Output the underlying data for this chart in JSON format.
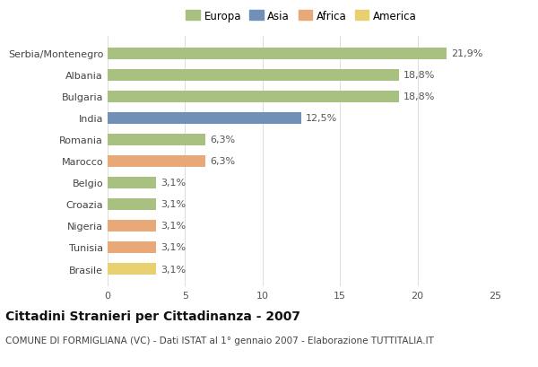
{
  "categories": [
    "Serbia/Montenegro",
    "Albania",
    "Bulgaria",
    "India",
    "Romania",
    "Marocco",
    "Belgio",
    "Croazia",
    "Nigeria",
    "Tunisia",
    "Brasile"
  ],
  "values": [
    21.9,
    18.8,
    18.8,
    12.5,
    6.3,
    6.3,
    3.1,
    3.1,
    3.1,
    3.1,
    3.1
  ],
  "labels": [
    "21,9%",
    "18,8%",
    "18,8%",
    "12,5%",
    "6,3%",
    "6,3%",
    "3,1%",
    "3,1%",
    "3,1%",
    "3,1%",
    "3,1%"
  ],
  "colors": [
    "#a8c080",
    "#a8c080",
    "#a8c080",
    "#7090b8",
    "#a8c080",
    "#e8a878",
    "#a8c080",
    "#a8c080",
    "#e8a878",
    "#e8a878",
    "#e8d070"
  ],
  "legend_labels": [
    "Europa",
    "Asia",
    "Africa",
    "America"
  ],
  "legend_colors": [
    "#a8c080",
    "#7090b8",
    "#e8a878",
    "#e8d070"
  ],
  "xlim": [
    0,
    25
  ],
  "xticks": [
    0,
    5,
    10,
    15,
    20,
    25
  ],
  "title": "Cittadini Stranieri per Cittadinanza - 2007",
  "subtitle": "COMUNE DI FORMIGLIANA (VC) - Dati ISTAT al 1° gennaio 2007 - Elaborazione TUTTITALIA.IT",
  "bg_color": "#ffffff",
  "grid_color": "#dddddd",
  "bar_height": 0.55,
  "title_fontsize": 10,
  "subtitle_fontsize": 7.5,
  "label_fontsize": 8,
  "tick_fontsize": 8,
  "legend_fontsize": 8.5
}
